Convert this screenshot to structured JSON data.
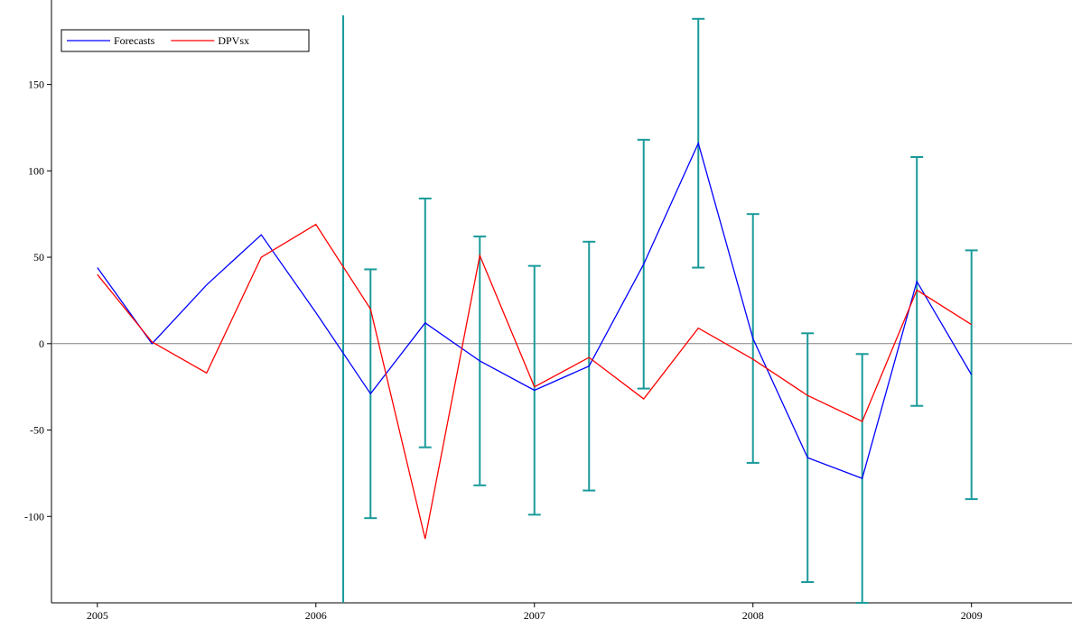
{
  "chart_data": {
    "type": "line",
    "x": [
      2005,
      2005.25,
      2005.5,
      2005.75,
      2006,
      2006.25,
      2006.5,
      2006.75,
      2007,
      2007.25,
      2007.5,
      2007.75,
      2008,
      2008.25,
      2008.5,
      2008.75,
      2009
    ],
    "series": [
      {
        "name": "Forecasts",
        "color": "#0000ff",
        "values": [
          44,
          0,
          34,
          63,
          18,
          -29,
          12,
          -10,
          -27,
          -13,
          46,
          116,
          3,
          -66,
          -78,
          36,
          -18
        ],
        "errors": [
          null,
          null,
          null,
          null,
          null,
          72,
          72,
          72,
          72,
          72,
          72,
          72,
          72,
          72,
          72,
          72,
          72
        ],
        "error_color": "#1a9a9a"
      },
      {
        "name": "DPVsx",
        "color": "#ff0000",
        "values": [
          40,
          1,
          -17,
          50,
          69,
          20,
          -113,
          51,
          -25,
          -8,
          -32,
          9,
          -9,
          -30,
          -45,
          31,
          11
        ]
      }
    ],
    "vlines": [
      2006.125
    ],
    "xlim": [
      2004.79,
      2009.46
    ],
    "xticks": [
      2005,
      2006,
      2007,
      2008,
      2009
    ],
    "ylim": [
      -150,
      190
    ],
    "yticks": [
      -100,
      -50,
      0,
      50,
      100,
      150
    ],
    "zero_line": true,
    "legend": "top-left"
  }
}
